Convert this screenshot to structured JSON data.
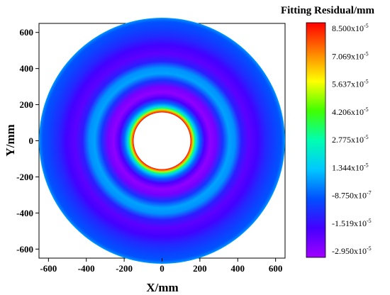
{
  "chart_data": {
    "type": "heatmap",
    "title": "",
    "xlabel": "X/mm",
    "ylabel": "Y/mm",
    "xlim": [
      -650,
      650
    ],
    "ylim": [
      -650,
      650
    ],
    "xticks": [
      "-600",
      "-400",
      "-200",
      "0",
      "200",
      "400",
      "600"
    ],
    "yticks": [
      "600",
      "400",
      "200",
      "0",
      "-200",
      "-400",
      "-600"
    ],
    "grid": false,
    "aperture_outer_radius": 650,
    "aperture_inner_radius": 150,
    "colorbar": {
      "title": "Fitting Residual/mm",
      "min": -2.95e-05,
      "max": 8.5e-05,
      "labels": [
        {
          "mant": "8.500x10",
          "exp": "-5"
        },
        {
          "mant": "7.069x10",
          "exp": "-5"
        },
        {
          "mant": "5.637x10",
          "exp": "-5"
        },
        {
          "mant": "4.206x10",
          "exp": "-5"
        },
        {
          "mant": "2.775x10",
          "exp": "-5"
        },
        {
          "mant": "1.344x10",
          "exp": "-5"
        },
        {
          "mant": "-8.750x10",
          "exp": "-7"
        },
        {
          "mant": "-1.519x10",
          "exp": "-5"
        },
        {
          "mant": "-2.950x10",
          "exp": "-5"
        }
      ],
      "colors": [
        "#ff0000",
        "#ff8000",
        "#ffff00",
        "#40ff00",
        "#00ffb0",
        "#00c8ff",
        "#0050ff",
        "#4400ff",
        "#a000ff"
      ]
    },
    "residual_profile": [
      {
        "r": 150,
        "value": 8.5e-05
      },
      {
        "r": 158,
        "value": 7e-05
      },
      {
        "r": 165,
        "value": 5e-05
      },
      {
        "r": 172,
        "value": 3.2e-05
      },
      {
        "r": 182,
        "value": 1.6e-05
      },
      {
        "r": 200,
        "value": 2e-06
      },
      {
        "r": 225,
        "value": -1.6e-05
      },
      {
        "r": 255,
        "value": -2.7e-05
      },
      {
        "r": 285,
        "value": -2.3e-05
      },
      {
        "r": 320,
        "value": -6e-06
      },
      {
        "r": 355,
        "value": 9e-06
      },
      {
        "r": 385,
        "value": 7e-06
      },
      {
        "r": 420,
        "value": -1e-05
      },
      {
        "r": 460,
        "value": -1.9e-05
      },
      {
        "r": 505,
        "value": -1.5e-05
      },
      {
        "r": 550,
        "value": -8e-06
      },
      {
        "r": 600,
        "value": -3e-06
      },
      {
        "r": 630,
        "value": -5e-07
      },
      {
        "r": 645,
        "value": 5e-06
      },
      {
        "r": 650,
        "value": 1e-05
      }
    ]
  }
}
